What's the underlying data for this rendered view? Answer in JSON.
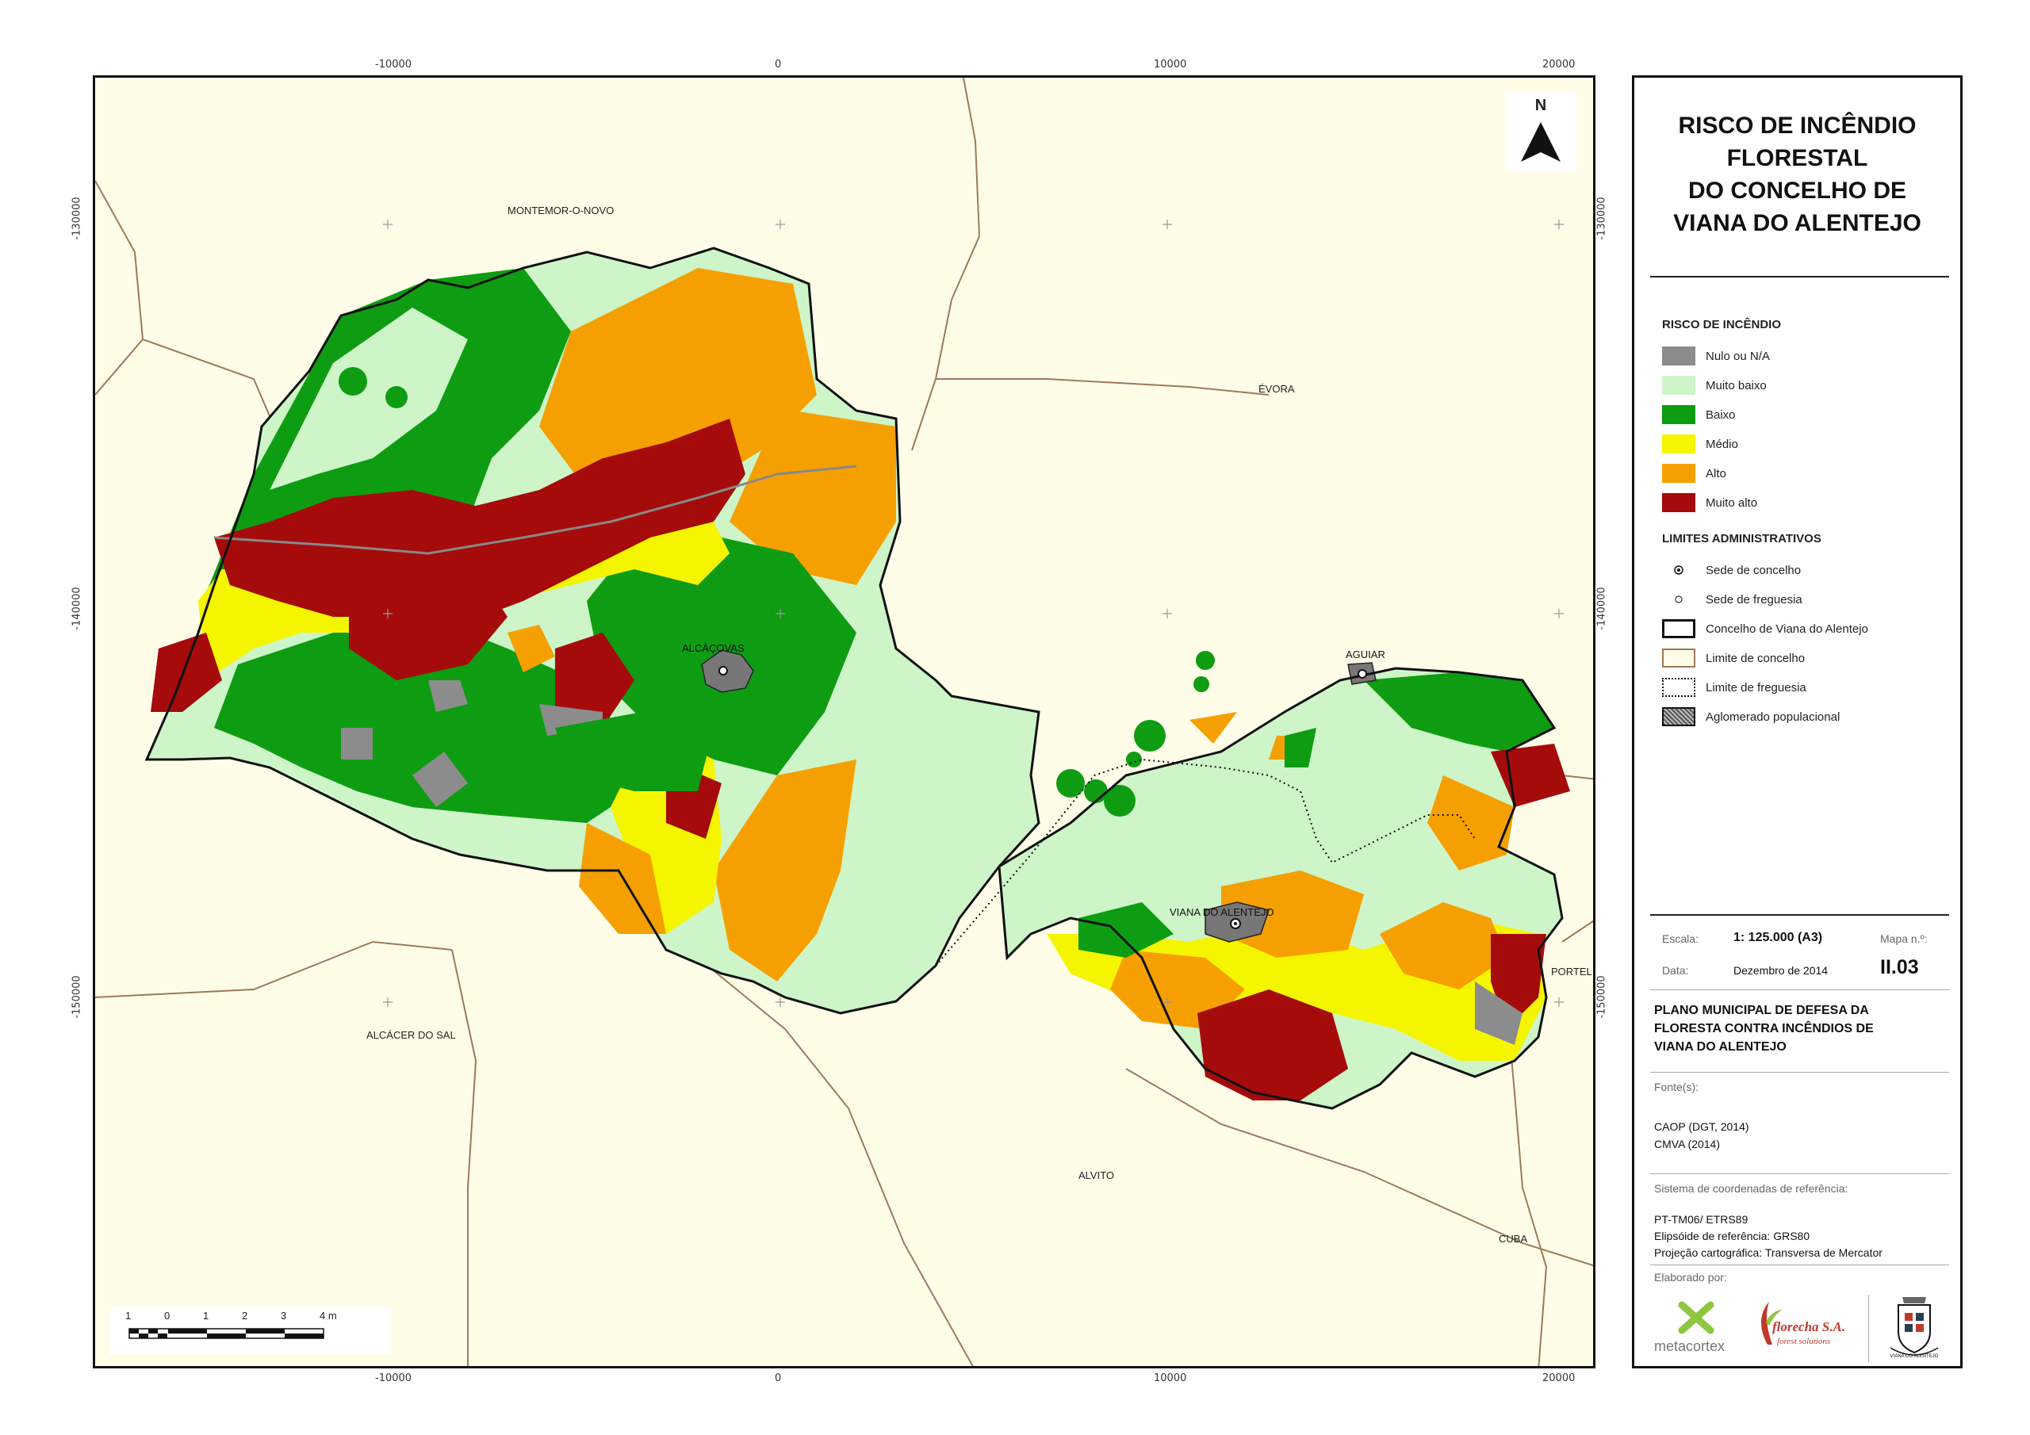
{
  "map": {
    "x_ticks": [
      "-10000",
      "0",
      "10000",
      "20000"
    ],
    "y_ticks": [
      "-130000",
      "-140000",
      "-150000"
    ],
    "place_names": {
      "montemor": "MONTEMOR-O-NOVO",
      "evora": "ÉVORA",
      "alcacer": "ALCÁCER DO SAL",
      "alvito": "ALVITO",
      "cuba": "CUBA",
      "portel": "PORTEL",
      "alcacovas": "ALCÁÇOVAS",
      "aguiar": "AGUIAR",
      "viana": "VIANA DO ALENTEJO"
    },
    "north_label": "N",
    "scale_ticks": [
      "1",
      "0",
      "1",
      "2",
      "3",
      "4 m"
    ]
  },
  "panel": {
    "title_lines": [
      "RISCO DE INCÊNDIO",
      "FLORESTAL",
      "DO CONCELHO DE",
      "VIANA DO ALENTEJO"
    ],
    "risk_heading": "RISCO DE INCÊNDIO",
    "risk_classes": [
      {
        "label": "Nulo ou N/A",
        "color": "#8c8c8c"
      },
      {
        "label": "Muito baixo",
        "color": "#cdf5c8"
      },
      {
        "label": "Baixo",
        "color": "#0e9c12"
      },
      {
        "label": "Médio",
        "color": "#f5f500"
      },
      {
        "label": "Alto",
        "color": "#f5a000"
      },
      {
        "label": "Muito alto",
        "color": "#a50b0b"
      }
    ],
    "admin_heading": "LIMITES ADMINISTRATIVOS",
    "admin_items": [
      {
        "label": "Sede de concelho"
      },
      {
        "label": "Sede de freguesia"
      },
      {
        "label": "Concelho de Viana do Alentejo"
      },
      {
        "label": "Limite de concelho"
      },
      {
        "label": "Limite de freguesia"
      },
      {
        "label": "Aglomerado populacional"
      }
    ],
    "scale_label": "Escala:",
    "scale_value": "1: 125.000 (A3)",
    "map_no_label": "Mapa n.º:",
    "map_no": "II.03",
    "date_label": "Data:",
    "date_value": "Dezembro de 2014",
    "plan_title": [
      "PLANO MUNICIPAL DE DEFESA DA",
      "FLORESTA CONTRA INCÊNDIOS DE",
      "VIANA DO ALENTEJO"
    ],
    "sources_label": "Fonte(s):",
    "sources": [
      "CAOP (DGT, 2014)",
      "CMVA (2014)"
    ],
    "crs_label": "Sistema de coordenadas de referência:",
    "crs_lines": [
      "PT-TM06/ ETRS89",
      "Elipsóide de referência: GRS80",
      "Projeção cartográfica: Transversa de Mercator"
    ],
    "made_by_label": "Elaborado por:",
    "logos": {
      "metacortex": "metacortex",
      "florecha": "florecha S.A.",
      "florecha_sub": "forest solutions",
      "coat_caption": "VIANA DO ALENTEJO"
    }
  }
}
